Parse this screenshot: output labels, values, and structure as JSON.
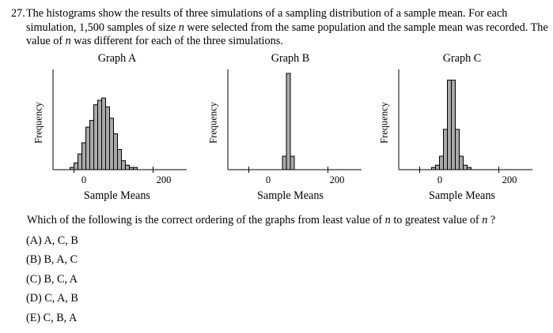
{
  "question": {
    "number": "27.",
    "text": "The histograms show the results of three simulations of a sampling distribution of a sample mean. For each simulation, 1,500 samples of size n were selected from the same population and the sample mean was recorded. The value of n was different for each of the three simulations."
  },
  "chart_data": [
    {
      "type": "bar",
      "title": "Graph A",
      "ylabel": "Frequency",
      "xlabel": "Sample Means",
      "xticks": [
        "0",
        "200"
      ],
      "bin_start": -10,
      "bin_width": 10,
      "xlim": [
        -55,
        285
      ],
      "values": [
        1,
        3,
        7,
        12,
        19,
        22,
        29,
        31,
        32,
        28,
        23,
        16,
        9,
        4,
        2,
        1,
        1
      ],
      "grid": false
    },
    {
      "type": "bar",
      "title": "Graph B",
      "ylabel": "Frequency",
      "xlabel": "Sample Means",
      "xticks": [
        "0",
        "200"
      ],
      "bin_start": 85,
      "bin_width": 10,
      "xlim": [
        -55,
        285
      ],
      "values": [
        6,
        43,
        6
      ],
      "grid": false
    },
    {
      "type": "bar",
      "title": "Graph C",
      "ylabel": "Frequency",
      "xlabel": "Sample Means",
      "xticks": [
        "0",
        "200"
      ],
      "bin_start": 30,
      "bin_width": 10,
      "xlim": [
        -55,
        285
      ],
      "values": [
        1,
        2,
        6,
        18,
        40,
        40,
        18,
        6,
        2,
        1
      ],
      "grid": false
    }
  ],
  "prompt": "Which of the following is the correct ordering of the graphs from least value of n to greatest value of n ?",
  "choices": [
    "(A)  A, C, B",
    "(B)  B, A, C",
    "(C)  B, C, A",
    "(D)  C, A, B",
    "(E)  C, B, A"
  ]
}
